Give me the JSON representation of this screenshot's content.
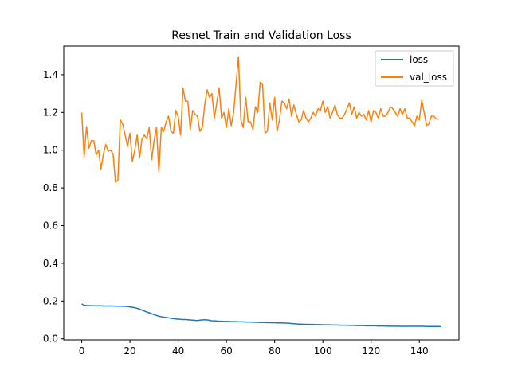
{
  "chart_data": {
    "type": "line",
    "title": "Resnet Train and Validation Loss",
    "xlabel": "",
    "ylabel": "",
    "xlim": [
      -7.45,
      156.45
    ],
    "ylim": [
      -0.0055,
      1.5515
    ],
    "xticks": [
      0,
      20,
      40,
      60,
      80,
      100,
      120,
      140
    ],
    "yticks": [
      0.0,
      0.2,
      0.4,
      0.6,
      0.8,
      1.0,
      1.2,
      1.4
    ],
    "ytick_labels": [
      "0.0",
      "0.2",
      "0.4",
      "0.6",
      "0.8",
      "1.0",
      "1.2",
      "1.4"
    ],
    "grid": false,
    "legend": {
      "position": "top-right"
    },
    "series": [
      {
        "name": "loss",
        "color": "#1f77b4",
        "values": [
          0.185,
          0.178,
          0.176,
          0.176,
          0.175,
          0.175,
          0.175,
          0.175,
          0.175,
          0.174,
          0.174,
          0.174,
          0.174,
          0.174,
          0.173,
          0.173,
          0.173,
          0.172,
          0.172,
          0.171,
          0.169,
          0.167,
          0.165,
          0.161,
          0.157,
          0.152,
          0.147,
          0.142,
          0.138,
          0.133,
          0.128,
          0.124,
          0.12,
          0.117,
          0.115,
          0.113,
          0.111,
          0.109,
          0.107,
          0.105,
          0.104,
          0.103,
          0.102,
          0.102,
          0.101,
          0.1,
          0.099,
          0.098,
          0.097,
          0.099,
          0.1,
          0.101,
          0.1,
          0.098,
          0.096,
          0.095,
          0.094,
          0.093,
          0.093,
          0.092,
          0.092,
          0.092,
          0.091,
          0.091,
          0.091,
          0.09,
          0.09,
          0.09,
          0.089,
          0.089,
          0.089,
          0.088,
          0.088,
          0.087,
          0.087,
          0.087,
          0.086,
          0.086,
          0.085,
          0.085,
          0.085,
          0.084,
          0.084,
          0.084,
          0.083,
          0.083,
          0.082,
          0.081,
          0.08,
          0.079,
          0.078,
          0.078,
          0.077,
          0.077,
          0.076,
          0.076,
          0.076,
          0.075,
          0.075,
          0.075,
          0.074,
          0.074,
          0.074,
          0.074,
          0.073,
          0.073,
          0.073,
          0.072,
          0.072,
          0.072,
          0.072,
          0.071,
          0.071,
          0.071,
          0.07,
          0.07,
          0.07,
          0.07,
          0.069,
          0.069,
          0.069,
          0.069,
          0.069,
          0.068,
          0.068,
          0.068,
          0.068,
          0.067,
          0.067,
          0.067,
          0.067,
          0.067,
          0.066,
          0.066,
          0.066,
          0.066,
          0.066,
          0.066,
          0.066,
          0.066,
          0.066,
          0.066,
          0.066,
          0.065,
          0.065,
          0.065,
          0.065,
          0.065,
          0.065,
          0.065
        ]
      },
      {
        "name": "val_loss",
        "color": "#ff7f0e",
        "values": [
          1.2,
          0.965,
          1.125,
          1.01,
          1.05,
          1.05,
          0.975,
          1.0,
          0.9,
          0.98,
          1.03,
          0.995,
          1.0,
          0.98,
          0.83,
          0.84,
          1.16,
          1.14,
          1.08,
          1.02,
          1.09,
          0.94,
          1.0,
          1.08,
          0.96,
          1.06,
          1.08,
          1.06,
          1.12,
          0.95,
          1.05,
          1.12,
          0.885,
          1.12,
          1.1,
          1.15,
          1.18,
          1.1,
          1.09,
          1.21,
          1.18,
          1.08,
          1.33,
          1.26,
          1.26,
          1.11,
          1.21,
          1.19,
          1.18,
          1.1,
          1.12,
          1.24,
          1.32,
          1.28,
          1.3,
          1.17,
          1.25,
          1.33,
          1.17,
          1.2,
          1.12,
          1.22,
          1.13,
          1.2,
          1.35,
          1.495,
          1.16,
          1.12,
          1.28,
          1.15,
          1.15,
          1.11,
          1.23,
          1.2,
          1.36,
          1.35,
          1.09,
          1.1,
          1.25,
          1.16,
          1.28,
          1.1,
          1.16,
          1.26,
          1.25,
          1.22,
          1.27,
          1.18,
          1.24,
          1.19,
          1.15,
          1.16,
          1.21,
          1.17,
          1.15,
          1.17,
          1.2,
          1.18,
          1.22,
          1.21,
          1.26,
          1.2,
          1.23,
          1.17,
          1.2,
          1.24,
          1.19,
          1.17,
          1.17,
          1.19,
          1.22,
          1.25,
          1.19,
          1.23,
          1.17,
          1.2,
          1.18,
          1.19,
          1.16,
          1.21,
          1.15,
          1.21,
          1.2,
          1.17,
          1.22,
          1.18,
          1.18,
          1.2,
          1.23,
          1.22,
          1.2,
          1.18,
          1.22,
          1.19,
          1.22,
          1.17,
          1.17,
          1.15,
          1.13,
          1.18,
          1.16,
          1.265,
          1.2,
          1.13,
          1.14,
          1.18,
          1.18,
          1.165,
          1.165
        ]
      }
    ]
  }
}
